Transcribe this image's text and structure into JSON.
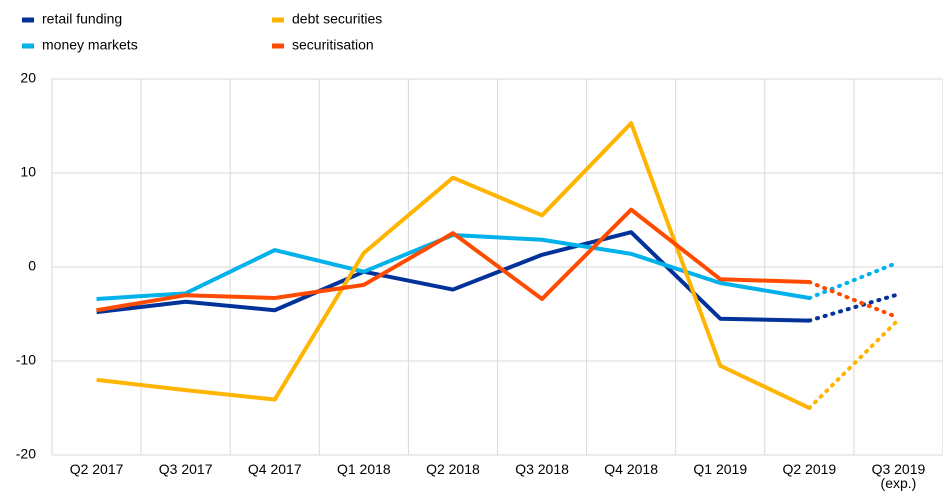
{
  "chart_data": {
    "type": "line",
    "categories": [
      "Q2 2017",
      "Q3 2017",
      "Q4 2017",
      "Q1 2018",
      "Q2 2018",
      "Q3 2018",
      "Q4 2018",
      "Q1 2019",
      "Q2 2019",
      "Q3 2019 (exp.)"
    ],
    "series": [
      {
        "name": "retail funding",
        "color": "#003299",
        "values": [
          -4.8,
          -3.7,
          -4.6,
          -0.5,
          -2.4,
          1.3,
          3.7,
          -5.5,
          -5.7,
          -2.9
        ]
      },
      {
        "name": "money markets",
        "color": "#00b1ea",
        "values": [
          -3.4,
          -2.8,
          1.8,
          -0.5,
          3.4,
          2.9,
          1.4,
          -1.7,
          -3.3,
          0.5
        ]
      },
      {
        "name": "debt securities",
        "color": "#ffb400",
        "values": [
          -12,
          -13.1,
          -14.1,
          1.5,
          9.5,
          5.5,
          15.3,
          -10.5,
          -15,
          -5.6
        ]
      },
      {
        "name": "securitisation",
        "color": "#ff4b00",
        "values": [
          -4.6,
          -3,
          -3.3,
          -1.9,
          3.6,
          -3.4,
          6.1,
          -1.3,
          -1.6,
          -5.4
        ]
      }
    ],
    "ylim": [
      -20,
      20
    ],
    "yticks": [
      -20,
      -10,
      0,
      10,
      20
    ],
    "grid": true
  }
}
